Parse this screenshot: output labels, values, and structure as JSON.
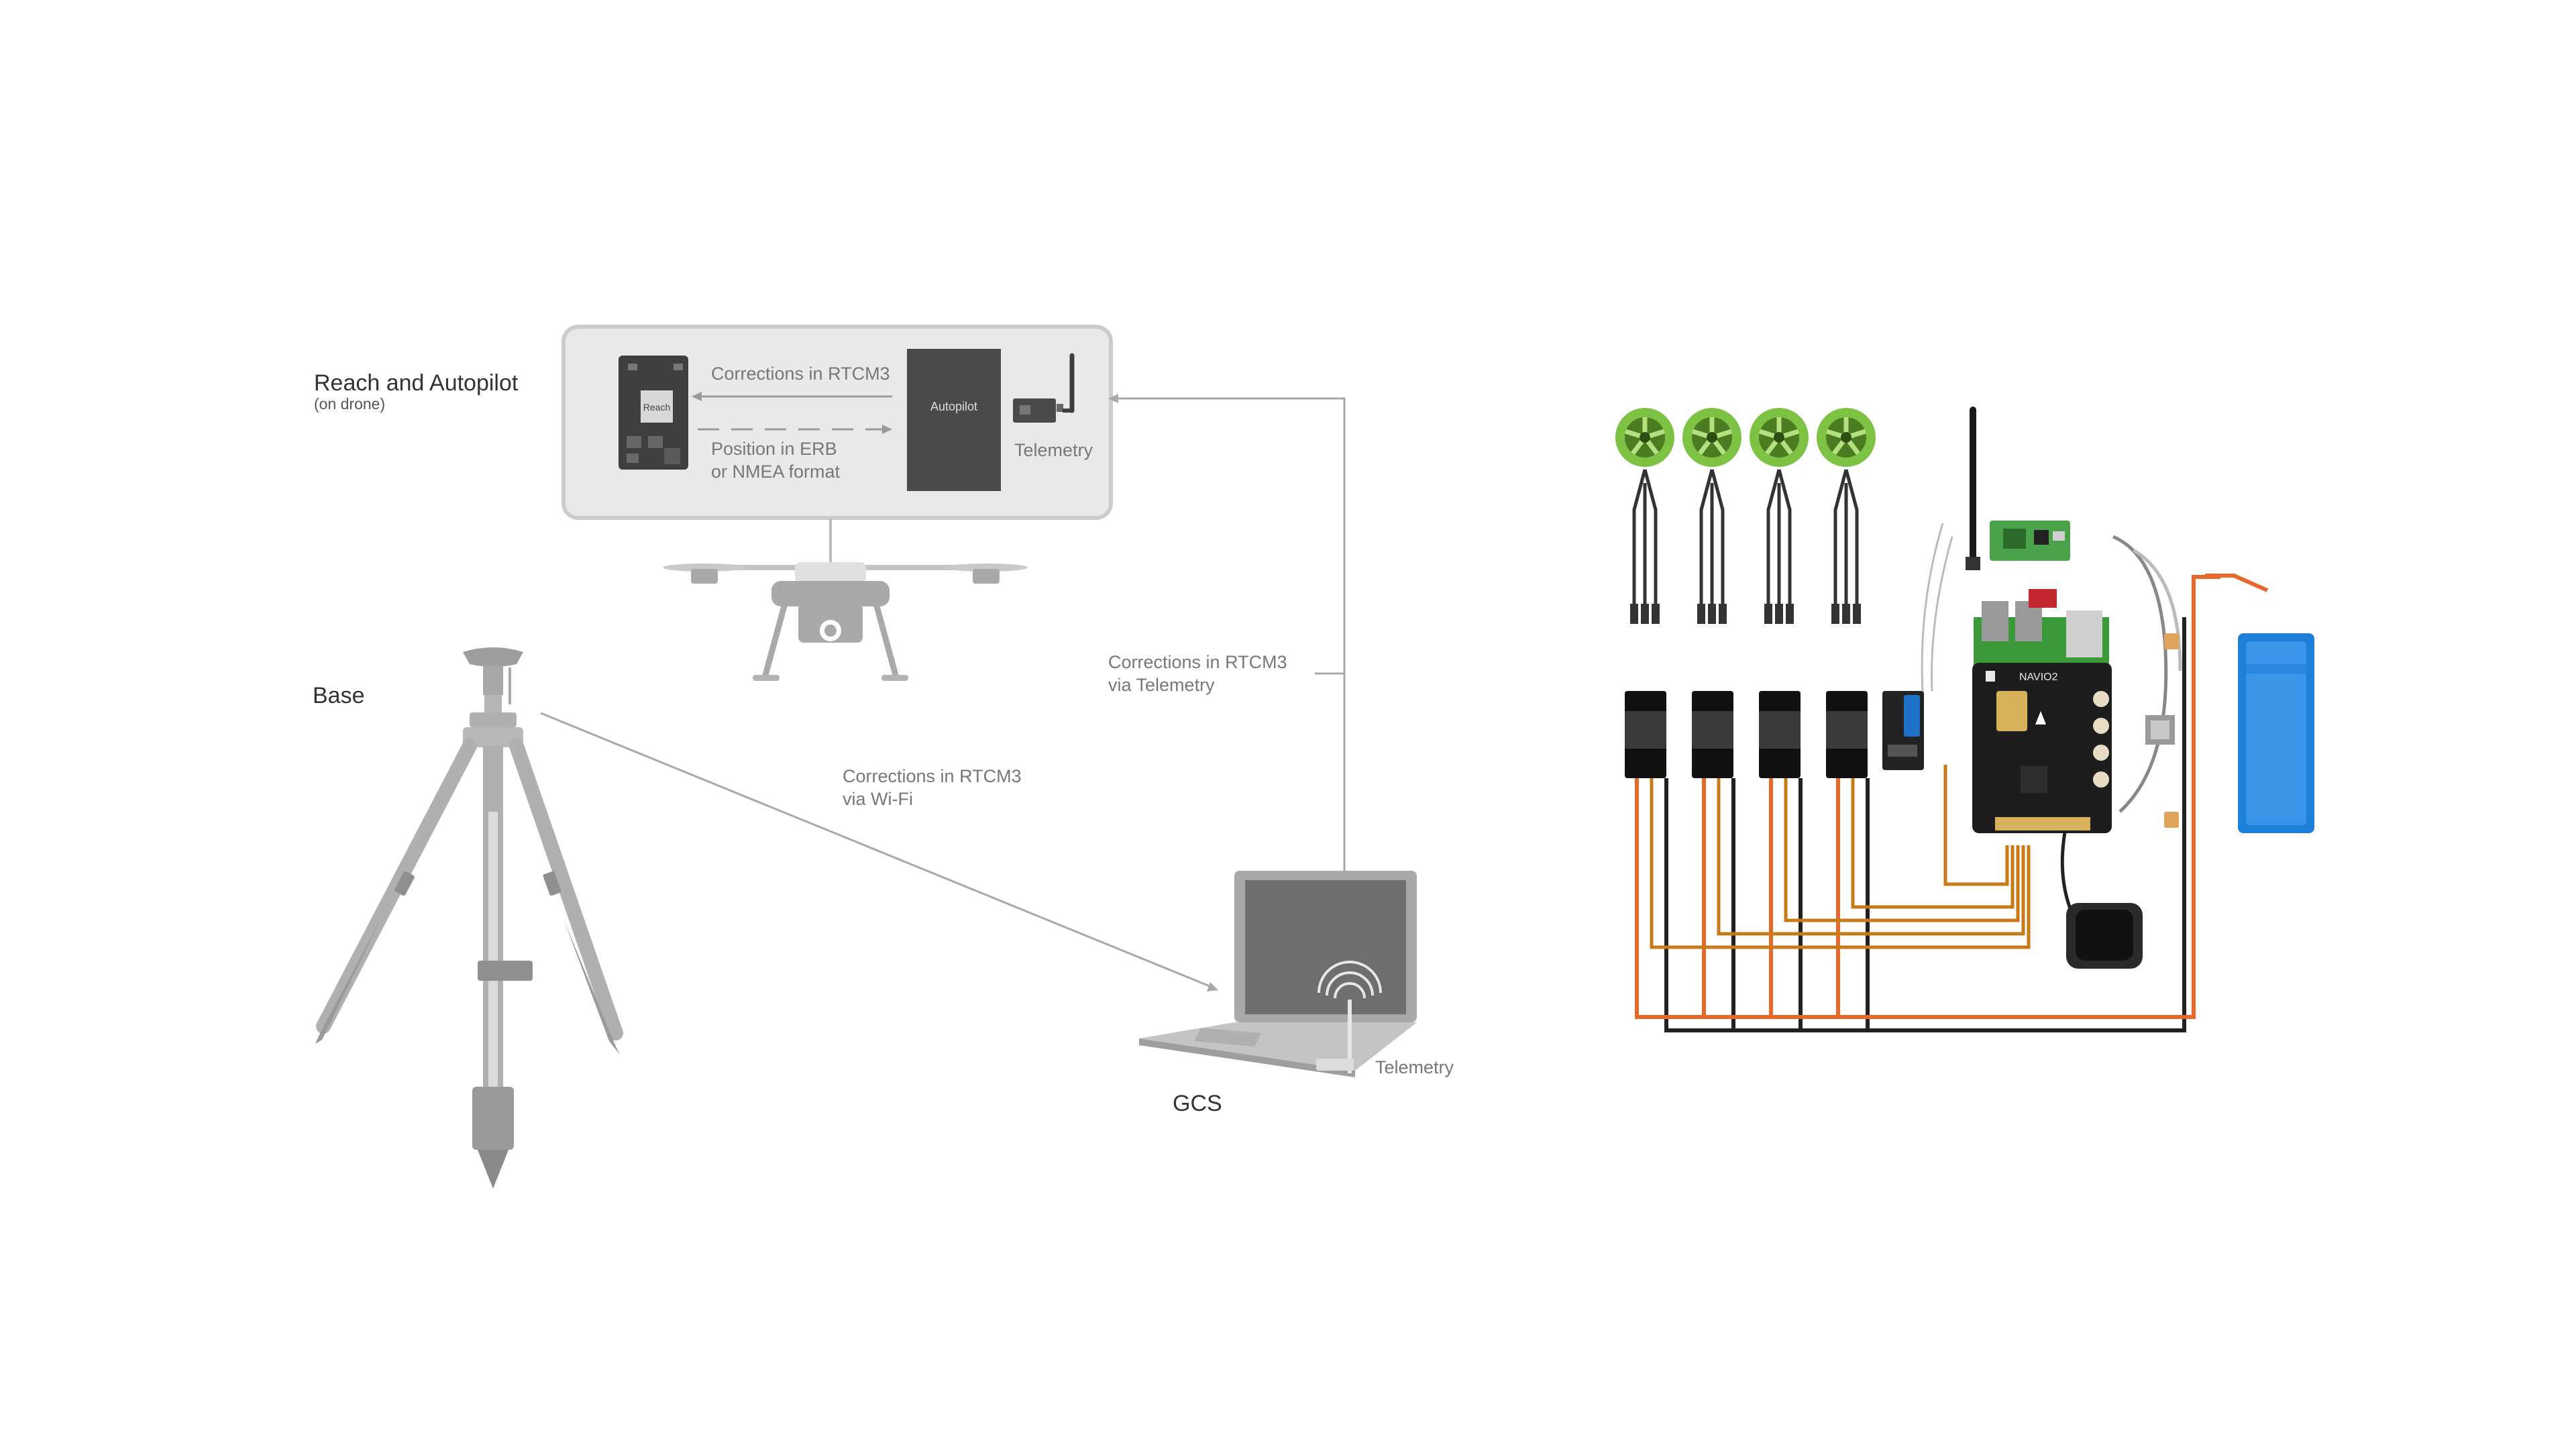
{
  "labels": {
    "reach_autopilot_title": "Reach and Autopilot",
    "reach_autopilot_sub": "(on drone)",
    "reach_module": "Reach",
    "corrections_rtcm3": "Corrections in RTCM3",
    "position_line1": "Position in ERB",
    "position_line2": "or NMEA format",
    "autopilot": "Autopilot",
    "telemetry_drone": "Telemetry",
    "base": "Base",
    "telemetry_link_line1": "Corrections in RTCM3",
    "telemetry_link_line2": "via Telemetry",
    "wifi_link_line1": "Corrections in RTCM3",
    "wifi_link_line2": "via Wi-Fi",
    "telemetry_gcs": "Telemetry",
    "gcs": "GCS",
    "navio_board": "NAVIO2"
  },
  "colors": {
    "panel_fill": "#e9e9e9",
    "panel_stroke": "#cccccc",
    "dark_module": "#4a4a4a",
    "gray_device": "#a9a9a9",
    "text_dark": "#333333",
    "text_light": "#7a7a7a",
    "motor_green": "#7dc242",
    "board_black": "#1d1d1d",
    "wire_orange": "#e8682a",
    "wire_amber": "#c97a17",
    "battery_blue": "#1e7fd8",
    "pcb_green": "#4aa34a"
  }
}
